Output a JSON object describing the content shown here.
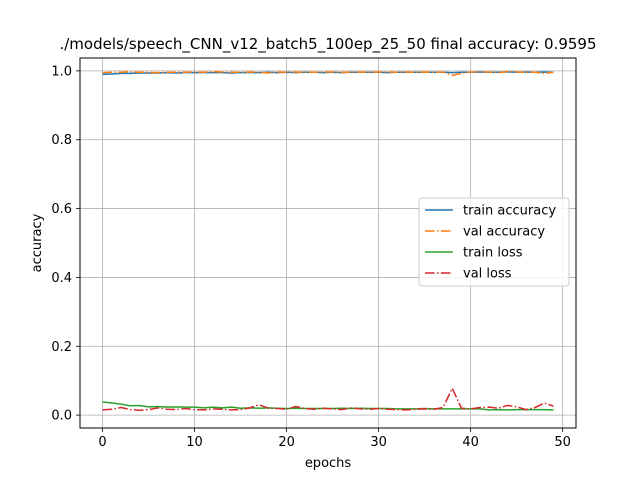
{
  "chart_data": {
    "type": "line",
    "title": "./models/speech_CNN_v12_batch5_100ep_25_50 final accuracy: 0.9595",
    "xlabel": "epochs",
    "ylabel": "accuracy",
    "xlim": [
      -2.45,
      51.45
    ],
    "ylim": [
      -0.0375,
      1.0375
    ],
    "grid": true,
    "legend_position": "center-right",
    "x_ticks": [
      0,
      10,
      20,
      30,
      40,
      50
    ],
    "x_tick_labels": [
      "0",
      "10",
      "20",
      "30",
      "40",
      "50"
    ],
    "y_ticks": [
      0.0,
      0.2,
      0.4,
      0.6,
      0.8,
      1.0
    ],
    "y_tick_labels": [
      "0.0",
      "0.2",
      "0.4",
      "0.6",
      "0.8",
      "1.0"
    ],
    "x": [
      0,
      1,
      2,
      3,
      4,
      5,
      6,
      7,
      8,
      9,
      10,
      11,
      12,
      13,
      14,
      15,
      16,
      17,
      18,
      19,
      20,
      21,
      22,
      23,
      24,
      25,
      26,
      27,
      28,
      29,
      30,
      31,
      32,
      33,
      34,
      35,
      36,
      37,
      38,
      39,
      40,
      41,
      42,
      43,
      44,
      45,
      46,
      47,
      48,
      49
    ],
    "series": [
      {
        "name": "train accuracy",
        "color": "#1f77b4",
        "style": "solid",
        "values": [
          0.99,
          0.991,
          0.993,
          0.993,
          0.994,
          0.994,
          0.994,
          0.995,
          0.994,
          0.995,
          0.995,
          0.995,
          0.995,
          0.995,
          0.994,
          0.995,
          0.995,
          0.995,
          0.996,
          0.995,
          0.996,
          0.995,
          0.996,
          0.996,
          0.995,
          0.996,
          0.995,
          0.996,
          0.996,
          0.996,
          0.996,
          0.995,
          0.996,
          0.996,
          0.996,
          0.996,
          0.996,
          0.996,
          0.995,
          0.996,
          0.996,
          0.997,
          0.996,
          0.996,
          0.997,
          0.996,
          0.997,
          0.996,
          0.997,
          0.996
        ]
      },
      {
        "name": "val accuracy",
        "color": "#ff7f0e",
        "style": "dashdot",
        "values": [
          0.995,
          0.996,
          0.996,
          0.998,
          0.996,
          0.996,
          0.995,
          0.996,
          0.996,
          0.996,
          0.997,
          0.996,
          0.998,
          0.997,
          0.996,
          0.996,
          0.997,
          0.996,
          0.994,
          0.997,
          0.996,
          0.997,
          0.996,
          0.996,
          0.997,
          0.997,
          0.996,
          0.996,
          0.997,
          0.996,
          0.997,
          0.997,
          0.996,
          0.997,
          0.996,
          0.997,
          0.996,
          0.997,
          0.987,
          0.993,
          0.997,
          0.997,
          0.997,
          0.995,
          0.998,
          0.997,
          0.996,
          0.996,
          0.993,
          0.996
        ]
      },
      {
        "name": "train loss",
        "color": "#2ca02c",
        "style": "solid",
        "values": [
          0.038,
          0.035,
          0.032,
          0.027,
          0.028,
          0.024,
          0.025,
          0.023,
          0.024,
          0.023,
          0.023,
          0.021,
          0.023,
          0.021,
          0.023,
          0.02,
          0.021,
          0.02,
          0.021,
          0.02,
          0.019,
          0.02,
          0.019,
          0.019,
          0.019,
          0.019,
          0.02,
          0.019,
          0.02,
          0.019,
          0.019,
          0.019,
          0.018,
          0.018,
          0.018,
          0.019,
          0.018,
          0.018,
          0.018,
          0.018,
          0.018,
          0.018,
          0.015,
          0.016,
          0.015,
          0.016,
          0.016,
          0.016,
          0.016,
          0.015
        ]
      },
      {
        "name": "val loss",
        "color": "#d62728",
        "style": "dashdot",
        "values": [
          0.015,
          0.017,
          0.022,
          0.016,
          0.014,
          0.016,
          0.021,
          0.017,
          0.016,
          0.019,
          0.016,
          0.015,
          0.018,
          0.017,
          0.015,
          0.016,
          0.021,
          0.03,
          0.02,
          0.019,
          0.017,
          0.025,
          0.019,
          0.017,
          0.02,
          0.018,
          0.016,
          0.021,
          0.018,
          0.017,
          0.019,
          0.017,
          0.016,
          0.015,
          0.017,
          0.018,
          0.017,
          0.022,
          0.078,
          0.02,
          0.018,
          0.022,
          0.023,
          0.02,
          0.028,
          0.024,
          0.016,
          0.022,
          0.035,
          0.026
        ]
      }
    ]
  }
}
